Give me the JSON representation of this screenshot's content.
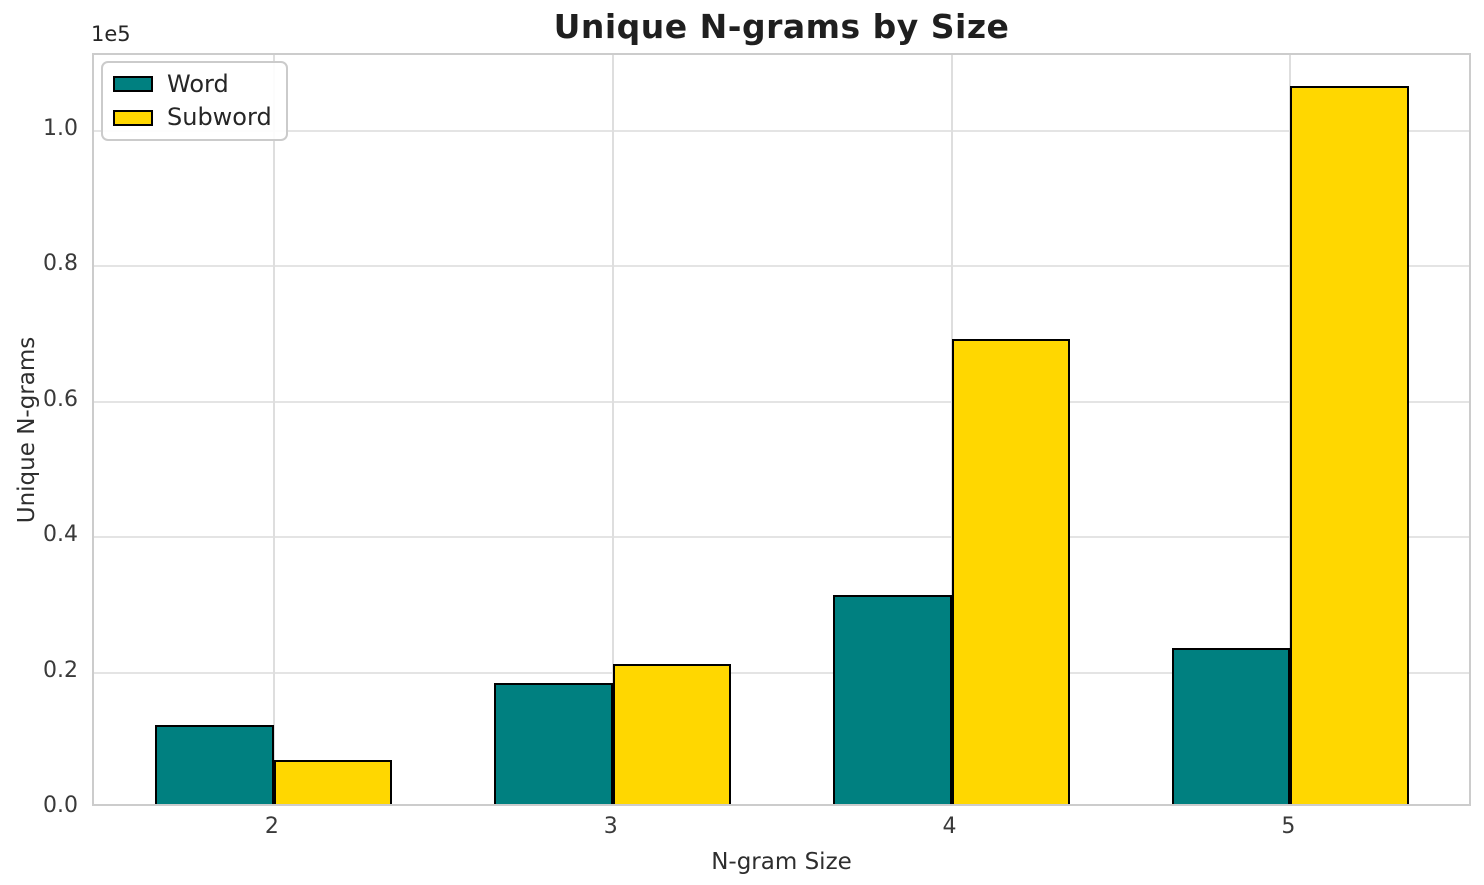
{
  "chart_data": {
    "type": "bar",
    "title": "Unique N-grams by Size",
    "xlabel": "N-gram Size",
    "ylabel": "Unique N-grams",
    "y_offset_label": "1e5",
    "categories": [
      "2",
      "3",
      "4",
      "5"
    ],
    "series": [
      {
        "name": "Word",
        "color": "#008080",
        "values": [
          11600,
          17900,
          30900,
          23100
        ]
      },
      {
        "name": "Subword",
        "color": "#FFD700",
        "values": [
          6500,
          20700,
          68700,
          106000
        ]
      }
    ],
    "bar_edge_color": "#000000",
    "bar_width_fraction": 0.35,
    "xlim": [
      -0.531,
      3.539
    ],
    "ylim": [
      0,
      111200
    ],
    "yticks": [
      0,
      20000,
      40000,
      60000,
      80000,
      100000
    ],
    "ytick_labels": [
      "0.0",
      "0.2",
      "0.4",
      "0.6",
      "0.8",
      "1.0"
    ],
    "grid": true,
    "legend_position": "upper left"
  },
  "style_colors": {
    "grid_horizontal": "#e4e4e4",
    "grid_vertical": "#dedede",
    "spine": "#cccccc",
    "text": "#262626"
  }
}
